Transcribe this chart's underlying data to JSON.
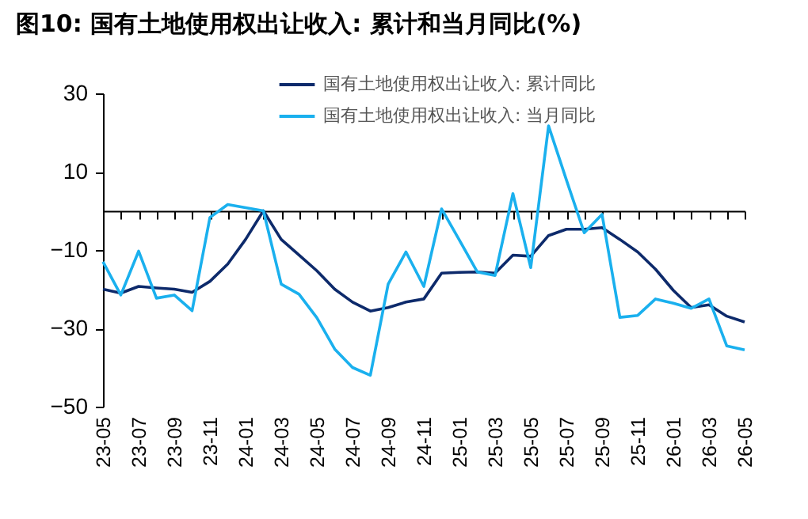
{
  "chart_data": {
    "type": "line",
    "title": "图10:  国有土地使用权出让收入: 累计和当月同比(%)",
    "categories": [
      "23-05",
      null,
      "23-07",
      null,
      "23-09",
      null,
      "23-11",
      null,
      "24-01",
      null,
      "24-03",
      null,
      "24-05",
      null,
      "24-07",
      null,
      "24-09",
      null,
      "24-11",
      null,
      "25-01",
      null,
      "25-03",
      null,
      "25-05",
      null,
      "25-07",
      null,
      "25-09",
      null,
      "25-11",
      null,
      "26-01",
      null,
      "26-03",
      null,
      "26-05"
    ],
    "series": [
      {
        "name": "国有土地使用权出让收入: 累计同比",
        "color": "#0d2a6b",
        "values": [
          -20,
          -21,
          -19.3,
          -19.7,
          -20,
          -20.8,
          -18,
          -13.6,
          -7.3,
          0,
          -7.3,
          -11.3,
          -15.3,
          -20,
          -23.3,
          -25.6,
          -24.7,
          -23.3,
          -22.5,
          -15.9,
          -15.7,
          -15.6,
          -15.9,
          -11.3,
          -11.6,
          -6.3,
          -4.7,
          -4.7,
          -4.3,
          -7.3,
          -10.5,
          -14.9,
          -20.3,
          -24.7,
          -24,
          -26.9,
          -28.4
        ]
      },
      {
        "name": "国有土地使用权出让收入: 当月同比",
        "color": "#1ab0ee",
        "values": [
          -13,
          -21.5,
          -10.3,
          -22.3,
          -21.5,
          -25.5,
          -1.7,
          1.6,
          0.8,
          0,
          -18.7,
          -21.3,
          -27.3,
          -35.3,
          -40,
          -42,
          -18.7,
          -10.5,
          -19.3,
          0.5,
          -7.5,
          -15.6,
          -16.5,
          4.4,
          -14.5,
          21.7,
          7.9,
          -5.6,
          -0.9,
          -27.2,
          -26.7,
          -22.5,
          -23.6,
          -24.9,
          -22.5,
          -34.5,
          -35.5
        ]
      }
    ],
    "ylim": [
      -50,
      30
    ],
    "yticks": [
      30,
      10,
      -10,
      -30,
      -50
    ],
    "grid": false,
    "legend": "top",
    "marker": "none",
    "line_style": "solid"
  }
}
